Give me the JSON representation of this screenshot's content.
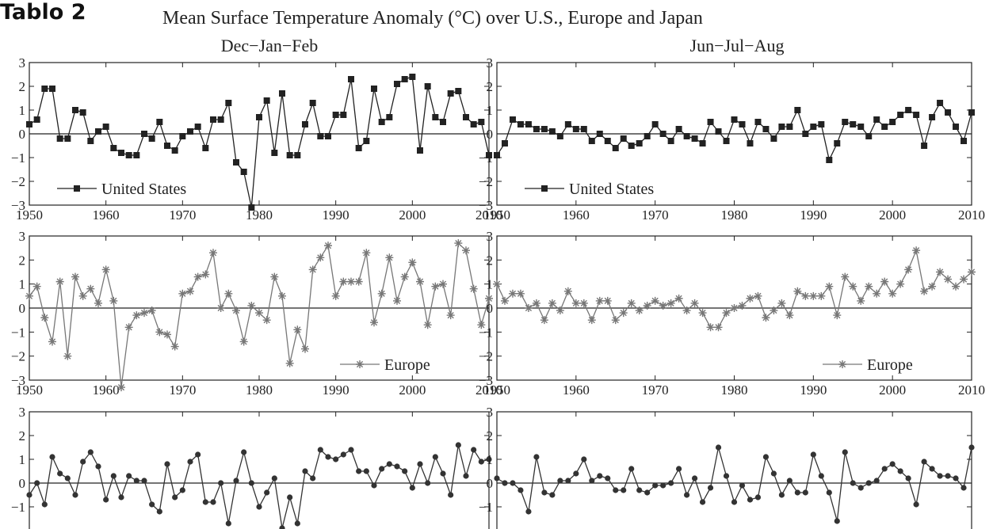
{
  "page_label": "Tablo 2",
  "title": "Mean Surface Temperature Anomaly (°C) over U.S., Europe and Japan",
  "colors": {
    "us": "#222222",
    "europe": "#777777",
    "japan": "#333333"
  },
  "chart_data": [
    {
      "type": "line",
      "season": "Dec−Jan−Feb",
      "series_name": "United States",
      "marker": "square",
      "color": "#222222",
      "xlim": [
        1950,
        2010
      ],
      "ylim": [
        -3,
        3
      ],
      "xticks": [
        "1950",
        "1960",
        "1970",
        "1980",
        "1990",
        "2000",
        "2010"
      ],
      "yticks": [
        "3",
        "2",
        "1",
        "0",
        "−1",
        "−2",
        "−3"
      ],
      "legend_position": "bottom-left",
      "x": [
        1950,
        1951,
        1952,
        1953,
        1954,
        1955,
        1956,
        1957,
        1958,
        1959,
        1960,
        1961,
        1962,
        1963,
        1964,
        1965,
        1966,
        1967,
        1968,
        1969,
        1970,
        1971,
        1972,
        1973,
        1974,
        1975,
        1976,
        1977,
        1978,
        1979,
        1980,
        1981,
        1982,
        1983,
        1984,
        1985,
        1986,
        1987,
        1988,
        1989,
        1990,
        1991,
        1992,
        1993,
        1994,
        1995,
        1996,
        1997,
        1998,
        1999,
        2000,
        2001,
        2002,
        2003,
        2004,
        2005,
        2006,
        2007,
        2008,
        2009,
        2010
      ],
      "values": [
        0.4,
        0.6,
        1.9,
        1.9,
        -0.2,
        -0.2,
        1.0,
        0.9,
        -0.3,
        0.1,
        0.3,
        -0.6,
        -0.8,
        -0.9,
        -0.9,
        0.0,
        -0.2,
        0.5,
        -0.5,
        -0.7,
        -0.1,
        0.1,
        0.3,
        -0.6,
        0.6,
        0.6,
        1.3,
        -1.2,
        -1.6,
        -3.1,
        0.7,
        1.4,
        -0.8,
        1.7,
        -0.9,
        -0.9,
        0.4,
        1.3,
        -0.1,
        -0.1,
        0.8,
        0.8,
        2.3,
        -0.6,
        -0.3,
        1.9,
        0.5,
        0.7,
        2.1,
        2.3,
        2.4,
        -0.7,
        2.0,
        0.7,
        0.5,
        1.7,
        1.8,
        0.7,
        0.4,
        0.5,
        -0.9
      ]
    },
    {
      "type": "line",
      "season": "Jun−Jul−Aug",
      "series_name": "United States",
      "marker": "square",
      "color": "#222222",
      "xlim": [
        1950,
        2010
      ],
      "ylim": [
        -3,
        3
      ],
      "xticks": [
        "1950",
        "1960",
        "1970",
        "1980",
        "1990",
        "2000",
        "2010"
      ],
      "yticks": [
        "3",
        "2",
        "1",
        "0",
        "−1",
        "−2",
        "−3"
      ],
      "legend_position": "bottom-left",
      "x": [
        1950,
        1951,
        1952,
        1953,
        1954,
        1955,
        1956,
        1957,
        1958,
        1959,
        1960,
        1961,
        1962,
        1963,
        1964,
        1965,
        1966,
        1967,
        1968,
        1969,
        1970,
        1971,
        1972,
        1973,
        1974,
        1975,
        1976,
        1977,
        1978,
        1979,
        1980,
        1981,
        1982,
        1983,
        1984,
        1985,
        1986,
        1987,
        1988,
        1989,
        1990,
        1991,
        1992,
        1993,
        1994,
        1995,
        1996,
        1997,
        1998,
        1999,
        2000,
        2001,
        2002,
        2003,
        2004,
        2005,
        2006,
        2007,
        2008,
        2009,
        2010
      ],
      "values": [
        -0.9,
        -0.4,
        0.6,
        0.4,
        0.4,
        0.2,
        0.2,
        0.1,
        -0.1,
        0.4,
        0.2,
        0.2,
        -0.3,
        0.0,
        -0.3,
        -0.6,
        -0.2,
        -0.5,
        -0.4,
        -0.1,
        0.4,
        0.0,
        -0.3,
        0.2,
        -0.1,
        -0.2,
        -0.4,
        0.5,
        0.1,
        -0.3,
        0.6,
        0.4,
        -0.4,
        0.5,
        0.2,
        -0.2,
        0.3,
        0.3,
        1.0,
        0.0,
        0.3,
        0.4,
        -1.1,
        -0.4,
        0.5,
        0.4,
        0.3,
        -0.1,
        0.6,
        0.3,
        0.5,
        0.8,
        1.0,
        0.8,
        -0.5,
        0.7,
        1.3,
        0.9,
        0.3,
        -0.3,
        0.9
      ]
    },
    {
      "type": "line",
      "season": "",
      "series_name": "Europe",
      "marker": "star",
      "color": "#777777",
      "xlim": [
        1950,
        2010
      ],
      "ylim": [
        -3,
        3
      ],
      "xticks": [
        "1950",
        "1960",
        "1970",
        "1980",
        "1990",
        "2000",
        "2010"
      ],
      "yticks": [
        "3",
        "2",
        "1",
        "0",
        "−1",
        "−2",
        "−3"
      ],
      "legend_position": "bottom-right",
      "x": [
        1950,
        1951,
        1952,
        1953,
        1954,
        1955,
        1956,
        1957,
        1958,
        1959,
        1960,
        1961,
        1962,
        1963,
        1964,
        1965,
        1966,
        1967,
        1968,
        1969,
        1970,
        1971,
        1972,
        1973,
        1974,
        1975,
        1976,
        1977,
        1978,
        1979,
        1980,
        1981,
        1982,
        1983,
        1984,
        1985,
        1986,
        1987,
        1988,
        1989,
        1990,
        1991,
        1992,
        1993,
        1994,
        1995,
        1996,
        1997,
        1998,
        1999,
        2000,
        2001,
        2002,
        2003,
        2004,
        2005,
        2006,
        2007,
        2008,
        2009,
        2010
      ],
      "values": [
        0.5,
        0.9,
        -0.4,
        -1.4,
        1.1,
        -2.0,
        1.3,
        0.5,
        0.8,
        0.2,
        1.6,
        0.3,
        -3.3,
        -0.8,
        -0.3,
        -0.2,
        -0.1,
        -1.0,
        -1.1,
        -1.6,
        0.6,
        0.7,
        1.3,
        1.4,
        2.3,
        0.0,
        0.6,
        -0.1,
        -1.4,
        0.1,
        -0.2,
        -0.5,
        1.3,
        0.5,
        -2.3,
        -0.9,
        -1.7,
        1.6,
        2.1,
        2.6,
        0.5,
        1.1,
        1.1,
        1.1,
        2.3,
        -0.6,
        0.6,
        2.1,
        0.3,
        1.3,
        1.9,
        1.1,
        -0.7,
        0.9,
        1.0,
        -0.3,
        2.7,
        2.4,
        0.8,
        -0.7,
        0.4
      ]
    },
    {
      "type": "line",
      "season": "",
      "series_name": "Europe",
      "marker": "star",
      "color": "#777777",
      "xlim": [
        1950,
        2010
      ],
      "ylim": [
        -3,
        3
      ],
      "xticks": [
        "1950",
        "1960",
        "1970",
        "1980",
        "1990",
        "2000",
        "2010"
      ],
      "yticks": [
        "3",
        "2",
        "1",
        "0",
        "−1",
        "−2",
        "−3"
      ],
      "legend_position": "bottom-right",
      "x": [
        1950,
        1951,
        1952,
        1953,
        1954,
        1955,
        1956,
        1957,
        1958,
        1959,
        1960,
        1961,
        1962,
        1963,
        1964,
        1965,
        1966,
        1967,
        1968,
        1969,
        1970,
        1971,
        1972,
        1973,
        1974,
        1975,
        1976,
        1977,
        1978,
        1979,
        1980,
        1981,
        1982,
        1983,
        1984,
        1985,
        1986,
        1987,
        1988,
        1989,
        1990,
        1991,
        1992,
        1993,
        1994,
        1995,
        1996,
        1997,
        1998,
        1999,
        2000,
        2001,
        2002,
        2003,
        2004,
        2005,
        2006,
        2007,
        2008,
        2009,
        2010
      ],
      "values": [
        1.0,
        0.3,
        0.6,
        0.6,
        0.0,
        0.2,
        -0.5,
        0.2,
        -0.1,
        0.7,
        0.2,
        0.2,
        -0.5,
        0.3,
        0.3,
        -0.5,
        -0.2,
        0.2,
        -0.1,
        0.1,
        0.3,
        0.1,
        0.2,
        0.4,
        -0.1,
        0.2,
        -0.2,
        -0.8,
        -0.8,
        -0.2,
        0.0,
        0.1,
        0.4,
        0.5,
        -0.4,
        -0.1,
        0.2,
        -0.3,
        0.7,
        0.5,
        0.5,
        0.5,
        0.9,
        -0.3,
        1.3,
        0.9,
        0.3,
        0.9,
        0.6,
        1.1,
        0.6,
        1.0,
        1.6,
        2.4,
        0.7,
        0.9,
        1.5,
        1.2,
        0.9,
        1.2,
        1.5
      ]
    },
    {
      "type": "line",
      "season": "",
      "series_name": "",
      "marker": "circle",
      "color": "#333333",
      "xlim": [
        1950,
        2010
      ],
      "ylim": [
        -3,
        3
      ],
      "xticks": [
        "1950",
        "1960",
        "1970",
        "1980",
        "1990",
        "2000",
        "2010"
      ],
      "yticks": [
        "3",
        "2",
        "1",
        "0",
        "−1",
        "−2",
        "−3"
      ],
      "legend_position": "",
      "x": [
        1950,
        1951,
        1952,
        1953,
        1954,
        1955,
        1956,
        1957,
        1958,
        1959,
        1960,
        1961,
        1962,
        1963,
        1964,
        1965,
        1966,
        1967,
        1968,
        1969,
        1970,
        1971,
        1972,
        1973,
        1974,
        1975,
        1976,
        1977,
        1978,
        1979,
        1980,
        1981,
        1982,
        1983,
        1984,
        1985,
        1986,
        1987,
        1988,
        1989,
        1990,
        1991,
        1992,
        1993,
        1994,
        1995,
        1996,
        1997,
        1998,
        1999,
        2000,
        2001,
        2002,
        2003,
        2004,
        2005,
        2006,
        2007,
        2008,
        2009,
        2010
      ],
      "values": [
        -0.5,
        0.0,
        -0.9,
        1.1,
        0.4,
        0.2,
        -0.5,
        0.9,
        1.3,
        0.7,
        -0.7,
        0.3,
        -0.6,
        0.3,
        0.1,
        0.1,
        -0.9,
        -1.2,
        0.8,
        -0.6,
        -0.3,
        0.9,
        1.2,
        -0.8,
        -0.8,
        0.0,
        -1.7,
        0.1,
        1.3,
        0.0,
        -1.0,
        -0.4,
        0.2,
        -1.9,
        -0.6,
        -1.7,
        0.5,
        0.2,
        1.4,
        1.1,
        1.0,
        1.2,
        1.4,
        0.5,
        0.5,
        -0.1,
        0.6,
        0.8,
        0.7,
        0.5,
        -0.2,
        0.8,
        0.0,
        1.1,
        0.4,
        -0.5,
        1.6,
        0.3,
        1.4,
        0.9,
        1.0
      ]
    },
    {
      "type": "line",
      "season": "",
      "series_name": "",
      "marker": "circle",
      "color": "#333333",
      "xlim": [
        1950,
        2010
      ],
      "ylim": [
        -3,
        3
      ],
      "xticks": [
        "1950",
        "1960",
        "1970",
        "1980",
        "1990",
        "2000",
        "2010"
      ],
      "yticks": [
        "3",
        "2",
        "1",
        "0",
        "−1",
        "−2",
        "−3"
      ],
      "legend_position": "",
      "x": [
        1950,
        1951,
        1952,
        1953,
        1954,
        1955,
        1956,
        1957,
        1958,
        1959,
        1960,
        1961,
        1962,
        1963,
        1964,
        1965,
        1966,
        1967,
        1968,
        1969,
        1970,
        1971,
        1972,
        1973,
        1974,
        1975,
        1976,
        1977,
        1978,
        1979,
        1980,
        1981,
        1982,
        1983,
        1984,
        1985,
        1986,
        1987,
        1988,
        1989,
        1990,
        1991,
        1992,
        1993,
        1994,
        1995,
        1996,
        1997,
        1998,
        1999,
        2000,
        2001,
        2002,
        2003,
        2004,
        2005,
        2006,
        2007,
        2008,
        2009,
        2010
      ],
      "values": [
        0.2,
        0.0,
        0.0,
        -0.3,
        -1.2,
        1.1,
        -0.4,
        -0.5,
        0.1,
        0.1,
        0.4,
        1.0,
        0.1,
        0.3,
        0.2,
        -0.3,
        -0.3,
        0.6,
        -0.3,
        -0.4,
        -0.1,
        -0.1,
        0.0,
        0.6,
        -0.5,
        0.2,
        -0.8,
        -0.2,
        1.5,
        0.3,
        -0.8,
        -0.1,
        -0.7,
        -0.6,
        1.1,
        0.4,
        -0.5,
        0.1,
        -0.4,
        -0.4,
        1.2,
        0.3,
        -0.4,
        -1.6,
        1.3,
        0.0,
        -0.2,
        0.0,
        0.1,
        0.6,
        0.8,
        0.5,
        0.2,
        -0.9,
        0.9,
        0.6,
        0.3,
        0.3,
        0.2,
        -0.2,
        1.5
      ]
    }
  ]
}
